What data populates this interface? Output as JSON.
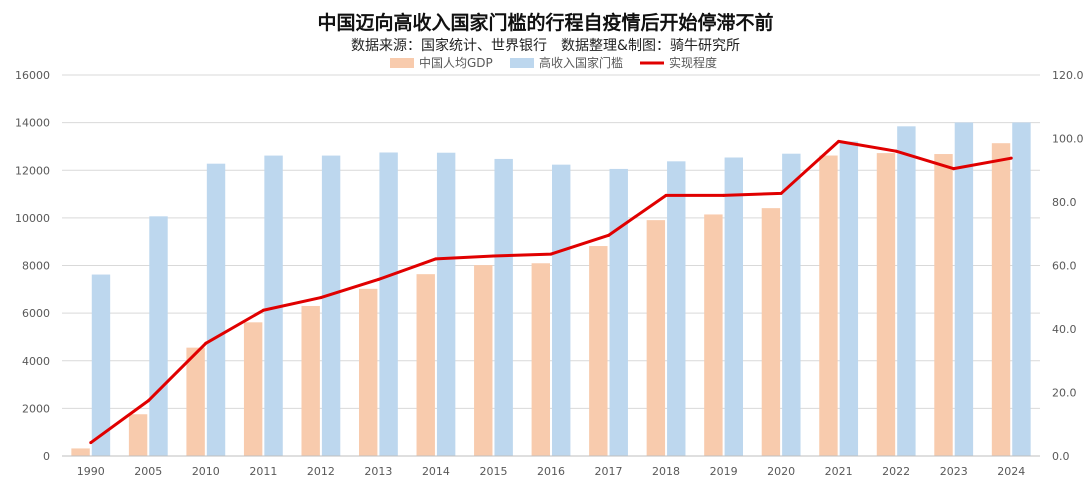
{
  "chart_data": {
    "type": "bar",
    "title": "中国迈向高收入国家门槛的行程自疫情后开始停滞不前",
    "subtitle": "数据来源：国家统计、世界银行　数据整理&制图：骑牛研究所",
    "categories": [
      "1990",
      "2005",
      "2010",
      "2011",
      "2012",
      "2013",
      "2014",
      "2015",
      "2016",
      "2017",
      "2018",
      "2019",
      "2020",
      "2021",
      "2022",
      "2023",
      "2024"
    ],
    "series": [
      {
        "name": "中国人均GDP",
        "type": "bar",
        "axis": "left",
        "color": "#f8cbad",
        "values": [
          318,
          1753,
          4550,
          5614,
          6301,
          7020,
          7636,
          8016,
          8094,
          8817,
          9905,
          10144,
          10409,
          12618,
          12720,
          12681,
          13136
        ]
      },
      {
        "name": "高收入国家门槛",
        "type": "bar",
        "axis": "left",
        "color": "#bdd7ee",
        "values": [
          7620,
          10065,
          12276,
          12616,
          12616,
          12746,
          12736,
          12475,
          12235,
          12055,
          12375,
          12535,
          12695,
          13205,
          13845,
          14005,
          14005
        ]
      },
      {
        "name": "实现程度",
        "type": "line",
        "axis": "right",
        "color": "#e00000",
        "values": [
          4.2,
          17.4,
          35.5,
          45.9,
          49.9,
          55.6,
          62.1,
          63.0,
          63.6,
          69.5,
          82.1,
          82.1,
          82.7,
          99.1,
          96.0,
          90.5,
          93.8
        ]
      }
    ],
    "ylim_left": [
      0,
      16000
    ],
    "yticks_left": [
      "0",
      "2000",
      "4000",
      "6000",
      "8000",
      "10000",
      "12000",
      "14000",
      "16000"
    ],
    "ylim_right": [
      0,
      120
    ],
    "yticks_right": [
      "0.0",
      "20.0",
      "40.0",
      "60.0",
      "80.0",
      "100.0",
      "120.0"
    ],
    "grid": true,
    "legend_position": "top-center"
  }
}
